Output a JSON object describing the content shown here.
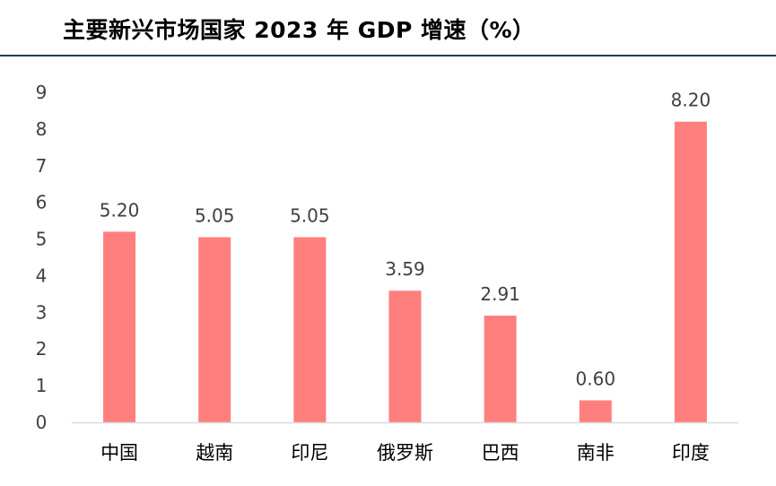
{
  "chart_data": {
    "type": "bar",
    "title": "主要新兴市场国家 2023 年 GDP 增速（%）",
    "categories": [
      "中国",
      "越南",
      "印尼",
      "俄罗斯",
      "巴西",
      "南非",
      "印度"
    ],
    "values": [
      5.2,
      5.05,
      5.05,
      3.59,
      2.91,
      0.6,
      8.2
    ],
    "data_labels": [
      "5.20",
      "5.05",
      "5.05",
      "3.59",
      "2.91",
      "0.60",
      "8.20"
    ],
    "xlabel": "",
    "ylabel": "",
    "ylim": [
      0,
      9
    ],
    "yticks": [
      "0",
      "1",
      "2",
      "3",
      "4",
      "5",
      "6",
      "7",
      "8",
      "9"
    ],
    "grid": false,
    "legend": "none",
    "bar_color": "#ff7f7f",
    "axis_color": "#d9d9d9",
    "title_rule_color": "#1f3b63"
  }
}
